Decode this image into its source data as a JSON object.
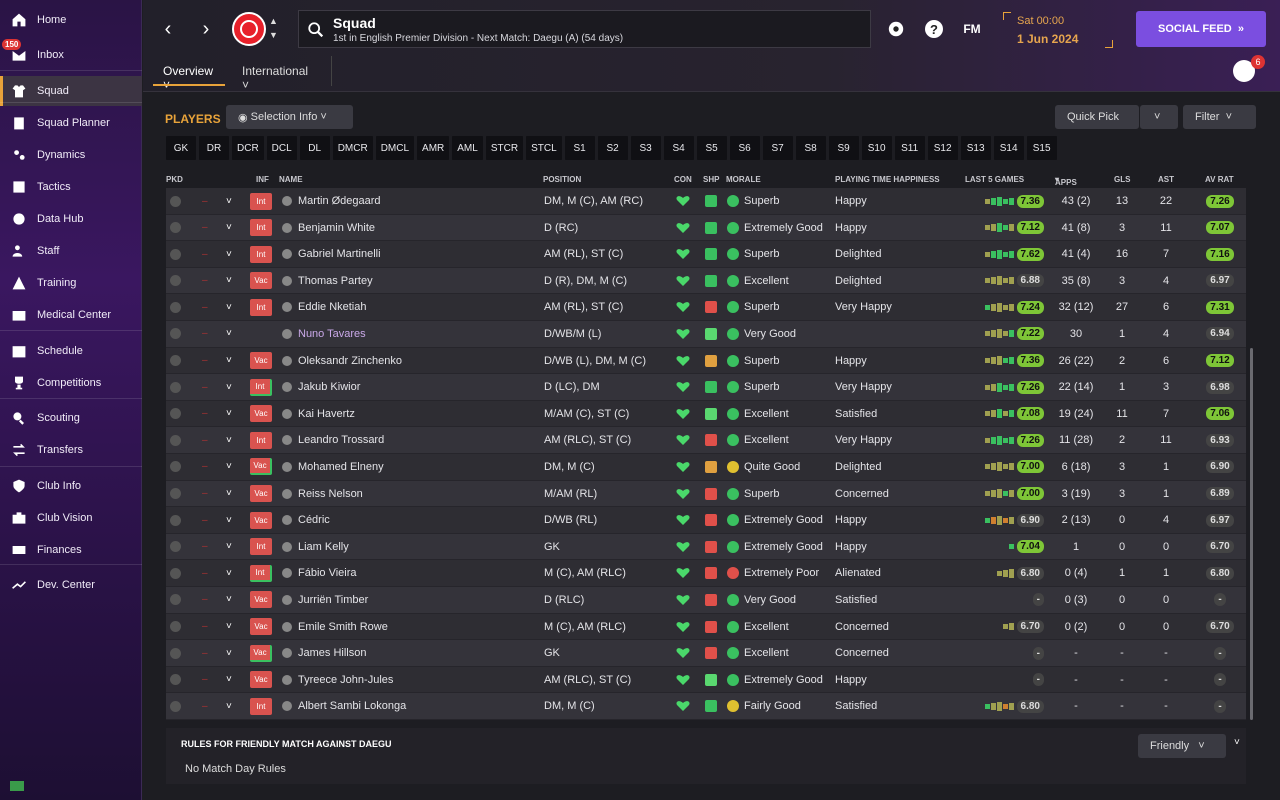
{
  "sidebar": {
    "items": [
      {
        "label": "Home",
        "icon": "home-icon"
      },
      {
        "label": "Inbox",
        "icon": "inbox-icon",
        "badge": "150"
      },
      {
        "label": "Squad",
        "icon": "shirt-icon",
        "active": true
      },
      {
        "label": "Squad Planner",
        "icon": "clipboard-icon"
      },
      {
        "label": "Dynamics",
        "icon": "dynamics-icon"
      },
      {
        "label": "Tactics",
        "icon": "tactics-icon"
      },
      {
        "label": "Data Hub",
        "icon": "data-hub-icon"
      },
      {
        "label": "Staff",
        "icon": "staff-icon"
      },
      {
        "label": "Training",
        "icon": "training-icon"
      },
      {
        "label": "Medical Center",
        "icon": "medical-icon"
      },
      {
        "label": "Schedule",
        "icon": "calendar-icon"
      },
      {
        "label": "Competitions",
        "icon": "trophy-icon"
      },
      {
        "label": "Scouting",
        "icon": "search-icon"
      },
      {
        "label": "Transfers",
        "icon": "transfer-icon"
      },
      {
        "label": "Club Info",
        "icon": "shield-icon"
      },
      {
        "label": "Club Vision",
        "icon": "briefcase-icon"
      },
      {
        "label": "Finances",
        "icon": "money-icon"
      },
      {
        "label": "Dev. Center",
        "icon": "dev-center-icon"
      }
    ]
  },
  "header": {
    "title": "Squad",
    "subtitle": "1st in English Premier Division - Next Match: Daegu (A) (54 days)",
    "time": "Sat 00:00",
    "date": "1 Jun 2024",
    "social_label": "SOCIAL FEED",
    "fm_label": "FM",
    "help_label": "?",
    "notification_count": "6",
    "tabs": [
      {
        "label": "Overview"
      },
      {
        "label": "International"
      }
    ]
  },
  "players_panel": {
    "label": "PLAYERS",
    "selection_info": "Selection Info",
    "quick_pick": "Quick Pick",
    "filter": "Filter",
    "positions": [
      "GK",
      "DR",
      "DCR",
      "DCL",
      "DL",
      "DMCR",
      "DMCL",
      "AMR",
      "AML",
      "STCR",
      "STCL",
      "S1",
      "S2",
      "S3",
      "S4",
      "S5",
      "S6",
      "S7",
      "S8",
      "S9",
      "S10",
      "S11",
      "S12",
      "S13",
      "S14",
      "S15"
    ]
  },
  "table": {
    "headers": {
      "pkd": "PKD",
      "inf": "INF",
      "name": "NAME",
      "position": "POSITION",
      "con": "CON",
      "shp": "SHP",
      "morale": "MORALE",
      "pth": "PLAYING TIME HAPPINESS",
      "last5": "LAST 5 GAMES",
      "apps": "APPS",
      "gls": "GLS",
      "ast": "AST",
      "avrat": "AV RAT"
    },
    "rows": [
      {
        "inf": "Int",
        "inf_green": false,
        "name": "Martin Ødegaard",
        "position": "DM, M (C), AM (RC)",
        "shp": "g",
        "morale": "Superb",
        "mc": "g",
        "pth": "Happy",
        "l5": "7.36",
        "l5g": true,
        "apps": "43 (2)",
        "gls": "13",
        "ast": "22",
        "avr": "7.26",
        "avrg": true,
        "bars": [
          "y",
          "g",
          "g",
          "g",
          "g"
        ]
      },
      {
        "inf": "Int",
        "inf_green": false,
        "name": "Benjamin White",
        "position": "D (RC)",
        "shp": "g",
        "morale": "Extremely Good",
        "mc": "g",
        "pth": "Happy",
        "l5": "7.12",
        "l5g": true,
        "apps": "41 (8)",
        "gls": "3",
        "ast": "11",
        "avr": "7.07",
        "avrg": true,
        "bars": [
          "y",
          "y",
          "g",
          "g",
          "y"
        ]
      },
      {
        "inf": "Int",
        "inf_green": false,
        "name": "Gabriel Martinelli",
        "position": "AM (RL), ST (C)",
        "shp": "g",
        "morale": "Superb",
        "mc": "g",
        "pth": "Delighted",
        "l5": "7.62",
        "l5g": true,
        "apps": "41 (4)",
        "gls": "16",
        "ast": "7",
        "avr": "7.16",
        "avrg": true,
        "bars": [
          "y",
          "g",
          "g",
          "g",
          "g"
        ]
      },
      {
        "inf": "Vac",
        "inf_green": false,
        "name": "Thomas Partey",
        "position": "D (R), DM, M (C)",
        "shp": "g",
        "morale": "Excellent",
        "mc": "g",
        "pth": "Delighted",
        "l5": "6.88",
        "l5g": false,
        "apps": "35 (8)",
        "gls": "3",
        "ast": "4",
        "avr": "6.97",
        "avrg": false,
        "bars": [
          "y",
          "y",
          "y",
          "y",
          "y"
        ]
      },
      {
        "inf": "Int",
        "inf_green": false,
        "name": "Eddie Nketiah",
        "position": "AM (RL), ST (C)",
        "shp": "r",
        "morale": "Superb",
        "mc": "g",
        "pth": "Very Happy",
        "l5": "7.24",
        "l5g": true,
        "apps": "32 (12)",
        "gls": "27",
        "ast": "6",
        "avr": "7.31",
        "avrg": true,
        "bars": [
          "g",
          "y",
          "y",
          "y",
          "y"
        ]
      },
      {
        "inf": "",
        "inf_green": false,
        "name": "Nuno Tavares",
        "loan": true,
        "position": "D/WB/M (L)",
        "shp": "g2",
        "morale": "Very Good",
        "mc": "g",
        "pth": "",
        "l5": "7.22",
        "l5g": true,
        "apps": "30",
        "gls": "1",
        "ast": "4",
        "avr": "6.94",
        "avrg": false,
        "bars": [
          "y",
          "y",
          "y",
          "y",
          "g"
        ]
      },
      {
        "inf": "Vac",
        "inf_green": false,
        "name": "Oleksandr Zinchenko",
        "position": "D/WB (L), DM, M (C)",
        "shp": "o",
        "morale": "Superb",
        "mc": "g",
        "pth": "Happy",
        "l5": "7.36",
        "l5g": true,
        "apps": "26 (22)",
        "gls": "2",
        "ast": "6",
        "avr": "7.12",
        "avrg": true,
        "bars": [
          "y",
          "y",
          "y",
          "g",
          "g"
        ]
      },
      {
        "inf": "Int",
        "inf_green": true,
        "name": "Jakub Kiwior",
        "position": "D (LC), DM",
        "shp": "g",
        "morale": "Superb",
        "mc": "g",
        "pth": "Very Happy",
        "l5": "7.26",
        "l5g": true,
        "apps": "22 (14)",
        "gls": "1",
        "ast": "3",
        "avr": "6.98",
        "avrg": false,
        "bars": [
          "y",
          "y",
          "g",
          "g",
          "g"
        ]
      },
      {
        "inf": "Vac",
        "inf_green": false,
        "name": "Kai Havertz",
        "position": "M/AM (C), ST (C)",
        "shp": "g2",
        "morale": "Excellent",
        "mc": "g",
        "pth": "Satisfied",
        "l5": "7.08",
        "l5g": true,
        "apps": "19 (24)",
        "gls": "11",
        "ast": "7",
        "avr": "7.06",
        "avrg": true,
        "bars": [
          "y",
          "y",
          "g",
          "y",
          "g"
        ]
      },
      {
        "inf": "Int",
        "inf_green": false,
        "name": "Leandro Trossard",
        "position": "AM (RLC), ST (C)",
        "shp": "r",
        "morale": "Excellent",
        "mc": "g",
        "pth": "Very Happy",
        "l5": "7.26",
        "l5g": true,
        "apps": "11 (28)",
        "gls": "2",
        "ast": "11",
        "avr": "6.93",
        "avrg": false,
        "bars": [
          "y",
          "g",
          "g",
          "g",
          "g"
        ]
      },
      {
        "inf": "Vac",
        "inf_green": true,
        "name": "Mohamed Elneny",
        "position": "DM, M (C)",
        "shp": "o",
        "morale": "Quite Good",
        "mc": "y",
        "pth": "Delighted",
        "l5": "7.00",
        "l5g": true,
        "apps": "6 (18)",
        "gls": "3",
        "ast": "1",
        "avr": "6.90",
        "avrg": false,
        "bars": [
          "y",
          "y",
          "y",
          "y",
          "y"
        ]
      },
      {
        "inf": "Vac",
        "inf_green": false,
        "name": "Reiss Nelson",
        "position": "M/AM (RL)",
        "shp": "r",
        "morale": "Superb",
        "mc": "g",
        "pth": "Concerned",
        "l5": "7.00",
        "l5g": true,
        "apps": "3 (19)",
        "gls": "3",
        "ast": "1",
        "avr": "6.89",
        "avrg": false,
        "bars": [
          "y",
          "y",
          "y",
          "g",
          "y"
        ]
      },
      {
        "inf": "Vac",
        "inf_green": false,
        "name": "Cédric",
        "position": "D/WB (RL)",
        "shp": "r",
        "morale": "Extremely Good",
        "mc": "g",
        "pth": "Happy",
        "l5": "6.90",
        "l5g": false,
        "apps": "2 (13)",
        "gls": "0",
        "ast": "4",
        "avr": "6.97",
        "avrg": false,
        "bars": [
          "g",
          "o",
          "y",
          "o",
          "y"
        ]
      },
      {
        "inf": "Int",
        "inf_green": false,
        "name": "Liam Kelly",
        "position": "GK",
        "shp": "r",
        "morale": "Extremely Good",
        "mc": "g",
        "pth": "Happy",
        "l5": "7.04",
        "l5g": true,
        "apps": "1",
        "gls": "0",
        "ast": "0",
        "avr": "6.70",
        "avrg": false,
        "bars": [
          "g"
        ]
      },
      {
        "inf": "Int",
        "inf_green": true,
        "name": "Fábio Vieira",
        "position": "M (C), AM (RLC)",
        "shp": "r",
        "morale": "Extremely Poor",
        "mc": "r",
        "pth": "Alienated",
        "l5": "6.80",
        "l5g": false,
        "apps": "0 (4)",
        "gls": "1",
        "ast": "1",
        "avr": "6.80",
        "avrg": false,
        "bars": [
          "y",
          "y",
          "y"
        ]
      },
      {
        "inf": "Vac",
        "inf_green": false,
        "name": "Jurriën Timber",
        "position": "D (RLC)",
        "shp": "r",
        "morale": "Very Good",
        "mc": "g",
        "pth": "Satisfied",
        "l5": "-",
        "l5g": false,
        "apps": "0 (3)",
        "gls": "0",
        "ast": "0",
        "avr": "-",
        "avrg": false,
        "bars": []
      },
      {
        "inf": "Vac",
        "inf_green": false,
        "name": "Emile Smith Rowe",
        "position": "M (C), AM (RLC)",
        "shp": "r",
        "morale": "Excellent",
        "mc": "g",
        "pth": "Concerned",
        "l5": "6.70",
        "l5g": false,
        "apps": "0 (2)",
        "gls": "0",
        "ast": "0",
        "avr": "6.70",
        "avrg": false,
        "bars": [
          "y",
          "y"
        ]
      },
      {
        "inf": "Vac",
        "inf_green": true,
        "name": "James Hillson",
        "position": "GK",
        "shp": "r",
        "morale": "Excellent",
        "mc": "g",
        "pth": "Concerned",
        "l5": "-",
        "l5g": false,
        "apps": "-",
        "gls": "-",
        "ast": "-",
        "avr": "-",
        "avrg": false,
        "bars": []
      },
      {
        "inf": "Vac",
        "inf_green": false,
        "name": "Tyreece John-Jules",
        "position": "AM (RLC), ST (C)",
        "shp": "g2",
        "morale": "Extremely Good",
        "mc": "g",
        "pth": "Happy",
        "l5": "-",
        "l5g": false,
        "apps": "-",
        "gls": "-",
        "ast": "-",
        "avr": "-",
        "avrg": false,
        "bars": []
      },
      {
        "inf": "Int",
        "inf_green": false,
        "name": "Albert Sambi Lokonga",
        "position": "DM, M (C)",
        "shp": "g",
        "morale": "Fairly Good",
        "mc": "y",
        "pth": "Satisfied",
        "l5": "6.80",
        "l5g": false,
        "apps": "-",
        "gls": "-",
        "ast": "-",
        "avr": "-",
        "avrg": false,
        "bars": [
          "g",
          "y",
          "y",
          "o",
          "y"
        ]
      }
    ]
  },
  "rules": {
    "title": "RULES FOR FRIENDLY MATCH AGAINST DAEGU",
    "text": "No Match Day Rules",
    "dropdown": "Friendly"
  },
  "colors": {
    "accent": "#e8a33a",
    "social": "#7b4ee0",
    "rating_green": "#7ec637",
    "inf_red": "#d9534f"
  }
}
